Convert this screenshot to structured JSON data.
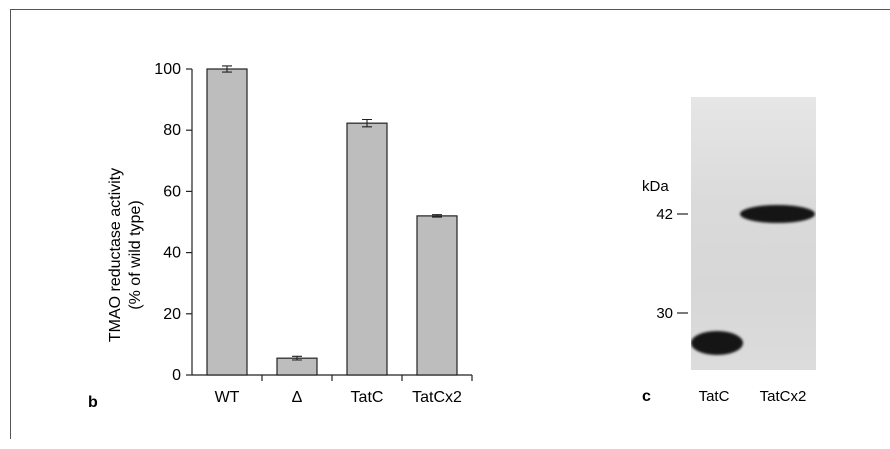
{
  "chart_data": [
    {
      "type": "bar",
      "panel_label": "b",
      "categories": [
        "WT",
        "Δ",
        "TatC",
        "TatCx2"
      ],
      "values": [
        100,
        5.5,
        82.3,
        52
      ],
      "errors": [
        1,
        0.6,
        1.2,
        0.4
      ],
      "title": "",
      "xlabel": "",
      "ylabel_lines": [
        "TMAO reductase activity",
        "(% of wild type)"
      ],
      "ylim": [
        0,
        100
      ],
      "yticks": [
        0,
        20,
        40,
        60,
        80,
        100
      ],
      "grid": false,
      "bar_color": "#bdbdbd"
    },
    {
      "type": "western_blot",
      "panel_label": "c",
      "unit_label": "kDa",
      "markers": [
        "42",
        "30"
      ],
      "lanes": [
        "TatC",
        "TatCx2"
      ]
    }
  ]
}
